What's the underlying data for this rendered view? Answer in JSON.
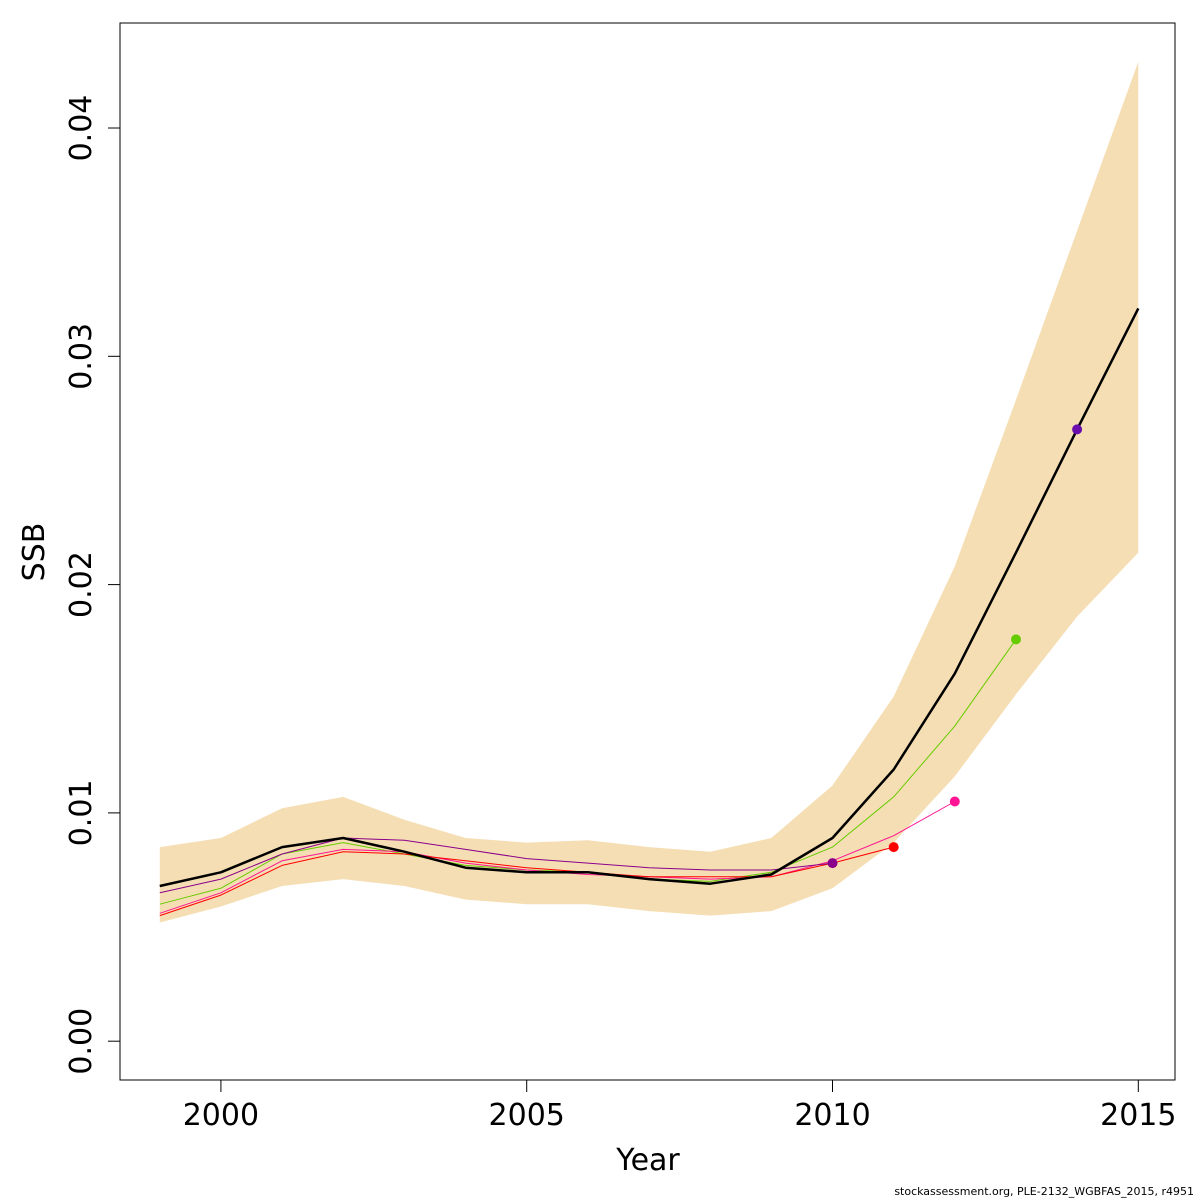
{
  "chart_data": {
    "type": "line",
    "xlabel": "Year",
    "ylabel": "SSB",
    "xlim": [
      1998.35,
      2015.6
    ],
    "ylim": [
      -0.0017,
      0.0446
    ],
    "x_ticks": [
      2000,
      2005,
      2010,
      2015
    ],
    "x_tick_labels": [
      "2000",
      "2005",
      "2010",
      "2015"
    ],
    "y_ticks": [
      0,
      0.01,
      0.02,
      0.03,
      0.04
    ],
    "y_tick_labels": [
      "0.00",
      "0.01",
      "0.02",
      "0.03",
      "0.04"
    ],
    "grid": false,
    "legend": "none",
    "band": {
      "color": "#f5deb3",
      "x": [
        1999,
        2000,
        2001,
        2002,
        2003,
        2004,
        2005,
        2006,
        2007,
        2008,
        2009,
        2010,
        2011,
        2012,
        2013,
        2014,
        2015
      ],
      "upper": [
        0.0085,
        0.0089,
        0.0102,
        0.0107,
        0.0097,
        0.0089,
        0.0087,
        0.0088,
        0.0085,
        0.0083,
        0.0089,
        0.0112,
        0.0151,
        0.0208,
        0.0281,
        0.0355,
        0.0429
      ],
      "lower": [
        0.0052,
        0.0059,
        0.0068,
        0.0071,
        0.0068,
        0.0062,
        0.006,
        0.006,
        0.0057,
        0.0055,
        0.0057,
        0.0067,
        0.0087,
        0.0116,
        0.0152,
        0.0186,
        0.0214
      ]
    },
    "series": [
      {
        "color": "#000000",
        "width": 2.5,
        "x": [
          1999,
          2000,
          2001,
          2002,
          2003,
          2004,
          2005,
          2006,
          2007,
          2008,
          2009,
          2010,
          2011,
          2012,
          2013,
          2014,
          2015
        ],
        "values": [
          0.0068,
          0.0074,
          0.0085,
          0.0089,
          0.0083,
          0.0076,
          0.0074,
          0.0074,
          0.0071,
          0.0069,
          0.0073,
          0.0089,
          0.0119,
          0.0161,
          0.0214,
          0.0268,
          0.0321
        ]
      },
      {
        "color": "#6a0dad",
        "width": 1.2,
        "x": [
          1999,
          2000,
          2001,
          2002,
          2003,
          2004,
          2005,
          2006,
          2007,
          2008,
          2009,
          2010,
          2011,
          2012,
          2013,
          2014
        ],
        "values": [
          0.0068,
          0.0074,
          0.0085,
          0.0089,
          0.0083,
          0.0076,
          0.0074,
          0.0074,
          0.0071,
          0.0069,
          0.0073,
          0.0089,
          0.0119,
          0.0161,
          0.0214,
          0.0268
        ],
        "endpoint": true
      },
      {
        "color": "#66cc00",
        "width": 1.0,
        "x": [
          1999,
          2000,
          2001,
          2002,
          2003,
          2004,
          2005,
          2006,
          2007,
          2008,
          2009,
          2010,
          2011,
          2012,
          2013
        ],
        "values": [
          0.006,
          0.0067,
          0.0082,
          0.0087,
          0.0082,
          0.0077,
          0.0075,
          0.0074,
          0.0071,
          0.007,
          0.0074,
          0.0085,
          0.0107,
          0.0138,
          0.0176
        ],
        "endpoint": true
      },
      {
        "color": "#ff1493",
        "width": 1.0,
        "x": [
          1999,
          2000,
          2001,
          2002,
          2003,
          2004,
          2005,
          2006,
          2007,
          2008,
          2009,
          2010,
          2011,
          2012
        ],
        "values": [
          0.0056,
          0.0065,
          0.0079,
          0.0084,
          0.0083,
          0.0078,
          0.0075,
          0.0073,
          0.0072,
          0.0071,
          0.0072,
          0.0079,
          0.009,
          0.0105
        ],
        "endpoint": true
      },
      {
        "color": "#ff0000",
        "width": 1.0,
        "x": [
          1999,
          2000,
          2001,
          2002,
          2003,
          2004,
          2005,
          2006,
          2007,
          2008,
          2009,
          2010,
          2011
        ],
        "values": [
          0.0055,
          0.0064,
          0.0077,
          0.0083,
          0.0082,
          0.0079,
          0.0076,
          0.0074,
          0.0072,
          0.0072,
          0.0072,
          0.0078,
          0.0085
        ],
        "endpoint": true
      },
      {
        "color": "#8b008b",
        "width": 1.0,
        "x": [
          1999,
          2000,
          2001,
          2002,
          2003,
          2004,
          2005,
          2006,
          2007,
          2008,
          2009,
          2010
        ],
        "values": [
          0.0065,
          0.0071,
          0.0082,
          0.0089,
          0.0088,
          0.0084,
          0.008,
          0.0078,
          0.0076,
          0.0075,
          0.0075,
          0.0078
        ],
        "endpoint": true
      }
    ]
  },
  "footer": {
    "text": "stockassessment.org, PLE-2132_WGBFAS_2015, r4951"
  }
}
